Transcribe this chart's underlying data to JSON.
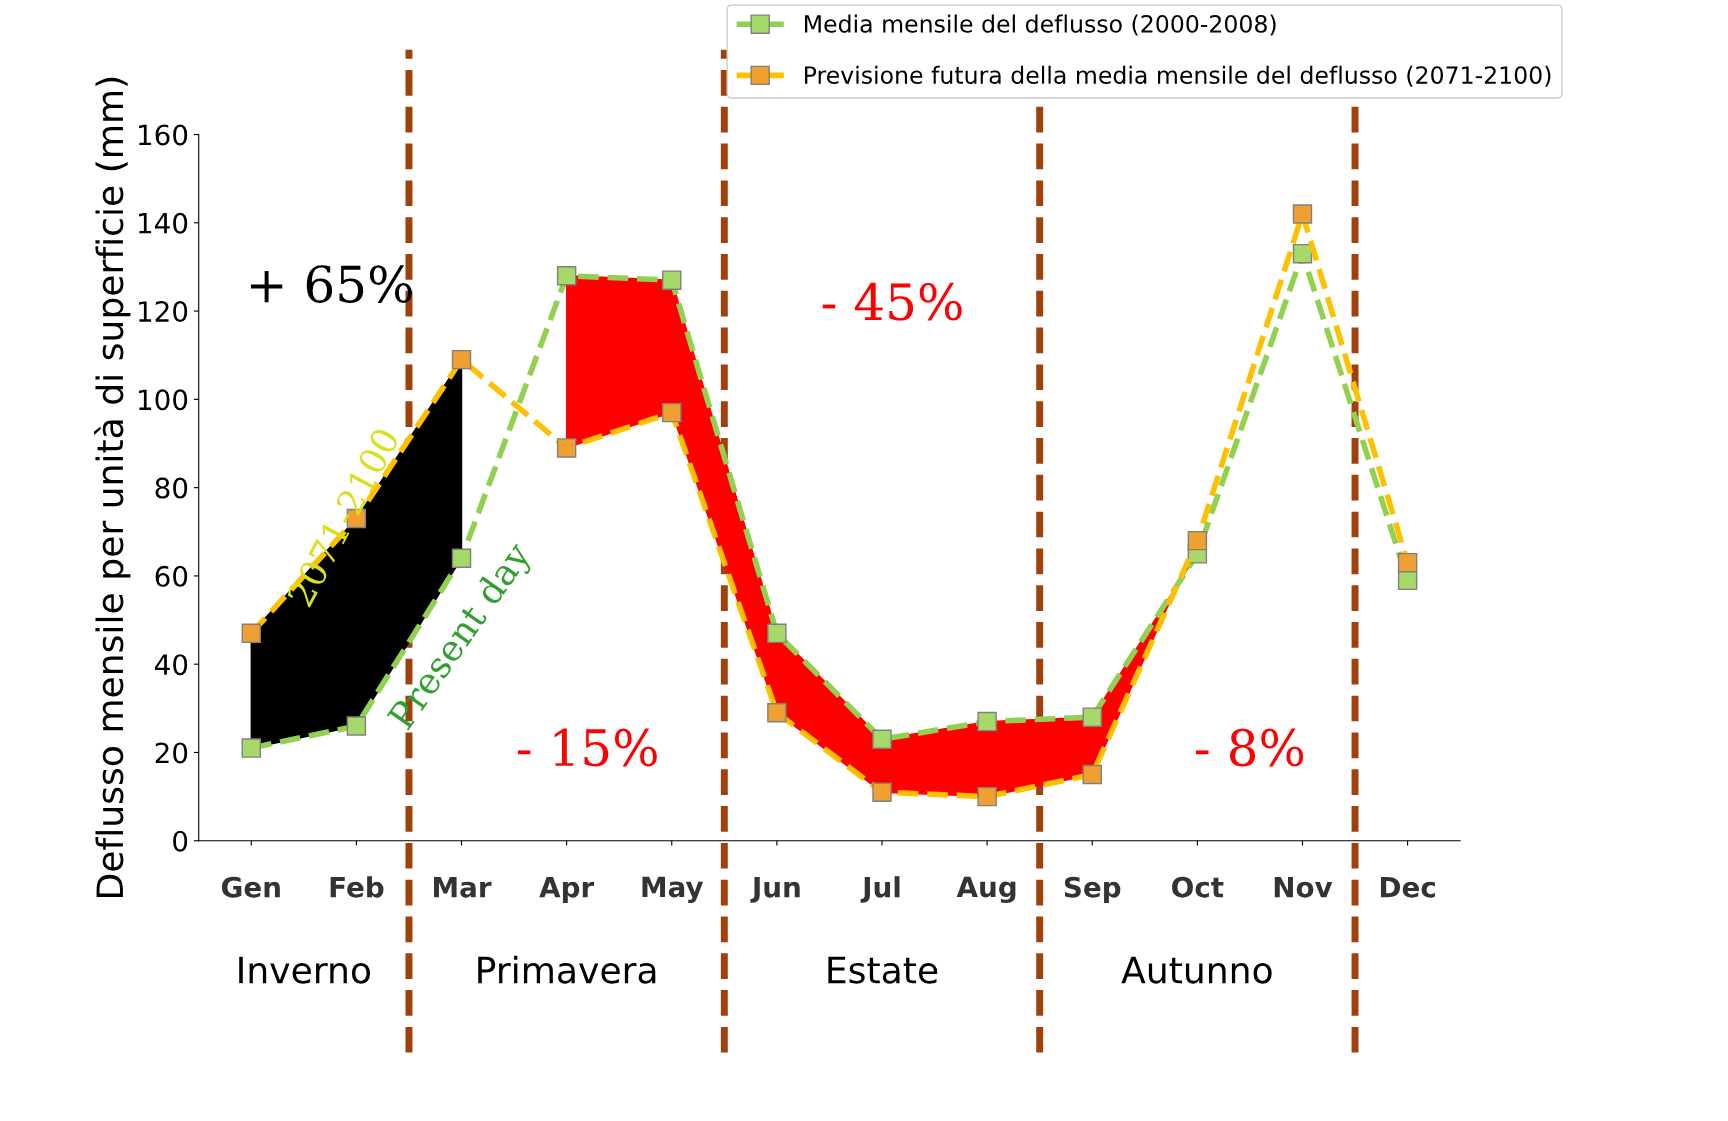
{
  "chart_data": {
    "type": "line",
    "ylabel": "Deflusso mensile per unità di superficie (mm)",
    "categories": [
      "Gen",
      "Feb",
      "Mar",
      "Apr",
      "May",
      "Jun",
      "Jul",
      "Aug",
      "Sep",
      "Oct",
      "Nov",
      "Dec"
    ],
    "series": [
      {
        "name": "Media mensile del deflusso (2000-2008)",
        "color": "#92d050",
        "values": [
          21,
          26,
          64,
          128,
          127,
          47,
          23,
          27,
          28,
          65,
          133,
          59
        ]
      },
      {
        "name": "Previsione futura della media mensile del deflusso (2071-2100)",
        "color": "#ffc000",
        "values": [
          47,
          73,
          109,
          89,
          97,
          29,
          11,
          10,
          15,
          68,
          142,
          63
        ]
      }
    ],
    "ylim": [
      0,
      160
    ],
    "yticks": [
      0,
      20,
      40,
      60,
      80,
      100,
      120,
      140,
      160
    ],
    "annotations": [
      "+ 65%",
      "- 15%",
      "- 45%",
      "- 8%",
      "2071-2100",
      "Present day",
      "Inverno",
      "Primavera",
      "Estate",
      "Autunno"
    ],
    "marker": "square",
    "line_style": "dashed",
    "grid": false,
    "legend": "top right"
  }
}
